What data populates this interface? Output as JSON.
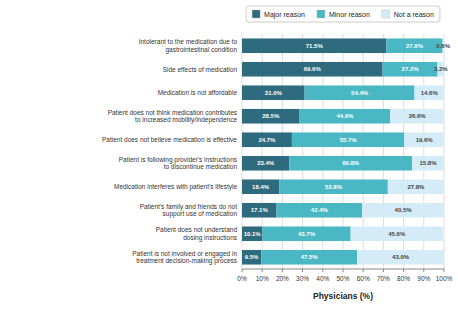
{
  "chart_data": {
    "type": "bar",
    "orientation": "horizontal",
    "stacked": true,
    "data_labels": true,
    "grid": true,
    "legend": "top",
    "xlabel": "Physicians (%)",
    "categories": [
      "Intolerant to the medication due to\ngastrointestinal condition",
      "Side effects of medication",
      "Medication is not affordable",
      "Patient does not think medication contributes\nto increased mobility/independence",
      "Patient does not believe medication is effective",
      "Patient is following provider's instructions\nto discontinue medication",
      "Medication interferes with patient's lifestyle",
      "Patient's family and friends do not\nsupport use of medication",
      "Patient does not understand\ndosing instructions",
      "Patient is not involved or engaged in\ntreatment decision-making process"
    ],
    "series": [
      {
        "name": "Major reason",
        "color": "#2e6b7e",
        "values": [
          71.5,
          69.6,
          31.0,
          28.5,
          24.7,
          23.4,
          18.4,
          17.1,
          10.1,
          9.5
        ],
        "value_labels": [
          "71.5%",
          "69.6%",
          "31.0%",
          "28.5%",
          "24.7%",
          "23.4%",
          "18.4%",
          "17.1%",
          "10.1%",
          "9.5%"
        ]
      },
      {
        "name": "Minor reason",
        "color": "#4ab8c4",
        "values": [
          27.8,
          27.2,
          54.4,
          44.9,
          55.7,
          60.8,
          53.8,
          42.4,
          43.7,
          47.5
        ],
        "value_labels": [
          "27.8%",
          "27.2%",
          "54.4%",
          "44.9%",
          "55.7%",
          "60.8%",
          "53.8%",
          "42.4%",
          "43.7%",
          "47.5%"
        ]
      },
      {
        "name": "Not a reason",
        "color": "#d4ecf7",
        "values": [
          0.6,
          3.2,
          14.6,
          26.6,
          19.6,
          15.8,
          27.8,
          40.5,
          45.6,
          43.0
        ],
        "value_labels": [
          "0.6%",
          "3.2%",
          "14.6%",
          "26.6%",
          "19.6%",
          "15.8%",
          "27.8%",
          "40.5%",
          "45.6%",
          "43.0%"
        ]
      }
    ],
    "xlim": [
      0,
      100
    ],
    "xticks": [
      {
        "value": 0,
        "label": "0%"
      },
      {
        "value": 10,
        "label": "10%"
      },
      {
        "value": 20,
        "label": "20%"
      },
      {
        "value": 30,
        "label": "30%"
      },
      {
        "value": 40,
        "label": "40%"
      },
      {
        "value": 50,
        "label": "50%"
      },
      {
        "value": 60,
        "label": "60%"
      },
      {
        "value": 70,
        "label": "70%"
      },
      {
        "value": 80,
        "label": "80%"
      },
      {
        "value": 90,
        "label": "90%"
      },
      {
        "value": 100,
        "label": "100%"
      }
    ]
  }
}
